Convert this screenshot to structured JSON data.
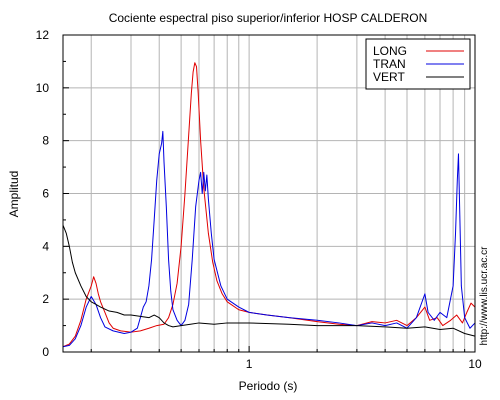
{
  "chart_data": {
    "type": "line",
    "title": "Cociente espectral piso superior/inferior  HOSP CALDERON",
    "xlabel": "Periodo (s)",
    "ylabel": "Amplitud",
    "xscale": "log",
    "xlim": [
      0.15,
      10
    ],
    "ylim": [
      0,
      12
    ],
    "x_tick_labels": [
      "1",
      "10"
    ],
    "x_ticks": [
      1,
      10
    ],
    "y_ticks": [
      0,
      2,
      4,
      6,
      8,
      10,
      12
    ],
    "y_tick_labels": [
      "0",
      "2",
      "4",
      "6",
      "8",
      "10",
      "12"
    ],
    "grid": true,
    "legend_position": "top-right",
    "side_text": "http://www.lis.ucr.ac.cr",
    "series": [
      {
        "name": "LONG",
        "color": "#e00000",
        "points": [
          [
            0.15,
            0.2
          ],
          [
            0.16,
            0.3
          ],
          [
            0.17,
            0.6
          ],
          [
            0.18,
            1.2
          ],
          [
            0.19,
            2.0
          ],
          [
            0.2,
            2.5
          ],
          [
            0.205,
            2.85
          ],
          [
            0.21,
            2.6
          ],
          [
            0.215,
            2.2
          ],
          [
            0.22,
            1.9
          ],
          [
            0.23,
            1.5
          ],
          [
            0.24,
            1.1
          ],
          [
            0.25,
            0.9
          ],
          [
            0.27,
            0.8
          ],
          [
            0.3,
            0.75
          ],
          [
            0.33,
            0.8
          ],
          [
            0.36,
            0.9
          ],
          [
            0.39,
            1.0
          ],
          [
            0.42,
            1.05
          ],
          [
            0.44,
            1.3
          ],
          [
            0.46,
            1.8
          ],
          [
            0.48,
            2.6
          ],
          [
            0.5,
            4.0
          ],
          [
            0.52,
            6.0
          ],
          [
            0.54,
            8.2
          ],
          [
            0.555,
            9.8
          ],
          [
            0.565,
            10.6
          ],
          [
            0.575,
            10.95
          ],
          [
            0.585,
            10.8
          ],
          [
            0.595,
            9.8
          ],
          [
            0.61,
            8.0
          ],
          [
            0.63,
            6.2
          ],
          [
            0.66,
            4.5
          ],
          [
            0.69,
            3.4
          ],
          [
            0.72,
            2.7
          ],
          [
            0.76,
            2.2
          ],
          [
            0.8,
            1.9
          ],
          [
            0.9,
            1.6
          ],
          [
            1.0,
            1.5
          ],
          [
            1.2,
            1.4
          ],
          [
            1.5,
            1.3
          ],
          [
            2.0,
            1.15
          ],
          [
            2.5,
            1.05
          ],
          [
            3.0,
            1.0
          ],
          [
            3.5,
            1.15
          ],
          [
            4.0,
            1.1
          ],
          [
            4.5,
            1.2
          ],
          [
            5.0,
            1.0
          ],
          [
            5.5,
            1.3
          ],
          [
            6.0,
            1.7
          ],
          [
            6.3,
            1.2
          ],
          [
            6.8,
            1.3
          ],
          [
            7.2,
            1.0
          ],
          [
            7.8,
            1.2
          ],
          [
            8.3,
            1.4
          ],
          [
            8.8,
            1.1
          ],
          [
            9.2,
            1.5
          ],
          [
            9.6,
            1.85
          ],
          [
            10.0,
            1.7
          ]
        ]
      },
      {
        "name": "TRAN",
        "color": "#0000e0",
        "points": [
          [
            0.15,
            0.2
          ],
          [
            0.16,
            0.25
          ],
          [
            0.17,
            0.5
          ],
          [
            0.18,
            1.0
          ],
          [
            0.19,
            1.7
          ],
          [
            0.2,
            2.1
          ],
          [
            0.21,
            1.8
          ],
          [
            0.22,
            1.3
          ],
          [
            0.23,
            0.95
          ],
          [
            0.25,
            0.8
          ],
          [
            0.28,
            0.7
          ],
          [
            0.3,
            0.75
          ],
          [
            0.32,
            0.9
          ],
          [
            0.33,
            1.3
          ],
          [
            0.34,
            1.7
          ],
          [
            0.35,
            1.9
          ],
          [
            0.36,
            2.5
          ],
          [
            0.37,
            3.5
          ],
          [
            0.38,
            5.0
          ],
          [
            0.39,
            6.5
          ],
          [
            0.4,
            7.5
          ],
          [
            0.41,
            7.9
          ],
          [
            0.415,
            8.35
          ],
          [
            0.42,
            7.2
          ],
          [
            0.43,
            5.5
          ],
          [
            0.44,
            3.5
          ],
          [
            0.45,
            2.3
          ],
          [
            0.46,
            1.6
          ],
          [
            0.48,
            1.2
          ],
          [
            0.5,
            1.0
          ],
          [
            0.52,
            1.2
          ],
          [
            0.54,
            1.8
          ],
          [
            0.56,
            3.5
          ],
          [
            0.58,
            5.5
          ],
          [
            0.6,
            6.5
          ],
          [
            0.61,
            6.8
          ],
          [
            0.62,
            6.0
          ],
          [
            0.63,
            6.8
          ],
          [
            0.64,
            6.1
          ],
          [
            0.65,
            6.7
          ],
          [
            0.66,
            5.8
          ],
          [
            0.68,
            4.5
          ],
          [
            0.7,
            3.5
          ],
          [
            0.75,
            2.5
          ],
          [
            0.8,
            2.0
          ],
          [
            0.9,
            1.7
          ],
          [
            1.0,
            1.5
          ],
          [
            1.2,
            1.4
          ],
          [
            1.5,
            1.3
          ],
          [
            2.0,
            1.2
          ],
          [
            2.5,
            1.1
          ],
          [
            3.0,
            1.0
          ],
          [
            3.5,
            1.1
          ],
          [
            4.0,
            1.0
          ],
          [
            4.5,
            1.1
          ],
          [
            5.0,
            0.9
          ],
          [
            5.5,
            1.3
          ],
          [
            6.0,
            2.2
          ],
          [
            6.2,
            1.5
          ],
          [
            6.6,
            1.2
          ],
          [
            7.0,
            1.5
          ],
          [
            7.5,
            1.3
          ],
          [
            8.0,
            2.5
          ],
          [
            8.2,
            4.5
          ],
          [
            8.35,
            6.5
          ],
          [
            8.45,
            7.5
          ],
          [
            8.55,
            5.5
          ],
          [
            8.7,
            2.5
          ],
          [
            9.0,
            1.3
          ],
          [
            9.5,
            0.9
          ],
          [
            10.0,
            1.1
          ]
        ]
      },
      {
        "name": "VERT",
        "color": "#000000",
        "points": [
          [
            0.15,
            4.8
          ],
          [
            0.155,
            4.5
          ],
          [
            0.16,
            4.0
          ],
          [
            0.165,
            3.4
          ],
          [
            0.17,
            3.0
          ],
          [
            0.18,
            2.5
          ],
          [
            0.19,
            2.1
          ],
          [
            0.2,
            1.9
          ],
          [
            0.21,
            1.8
          ],
          [
            0.22,
            1.7
          ],
          [
            0.24,
            1.55
          ],
          [
            0.26,
            1.5
          ],
          [
            0.28,
            1.4
          ],
          [
            0.3,
            1.4
          ],
          [
            0.33,
            1.35
          ],
          [
            0.36,
            1.3
          ],
          [
            0.38,
            1.4
          ],
          [
            0.4,
            1.3
          ],
          [
            0.42,
            1.1
          ],
          [
            0.44,
            1.0
          ],
          [
            0.46,
            0.95
          ],
          [
            0.5,
            1.0
          ],
          [
            0.55,
            1.05
          ],
          [
            0.6,
            1.1
          ],
          [
            0.7,
            1.05
          ],
          [
            0.8,
            1.1
          ],
          [
            1.0,
            1.1
          ],
          [
            1.5,
            1.05
          ],
          [
            2.0,
            1.0
          ],
          [
            3.0,
            1.0
          ],
          [
            4.0,
            0.95
          ],
          [
            5.0,
            0.9
          ],
          [
            6.0,
            0.95
          ],
          [
            7.0,
            0.85
          ],
          [
            8.0,
            0.9
          ],
          [
            9.0,
            0.7
          ],
          [
            10.0,
            0.6
          ]
        ]
      }
    ]
  }
}
